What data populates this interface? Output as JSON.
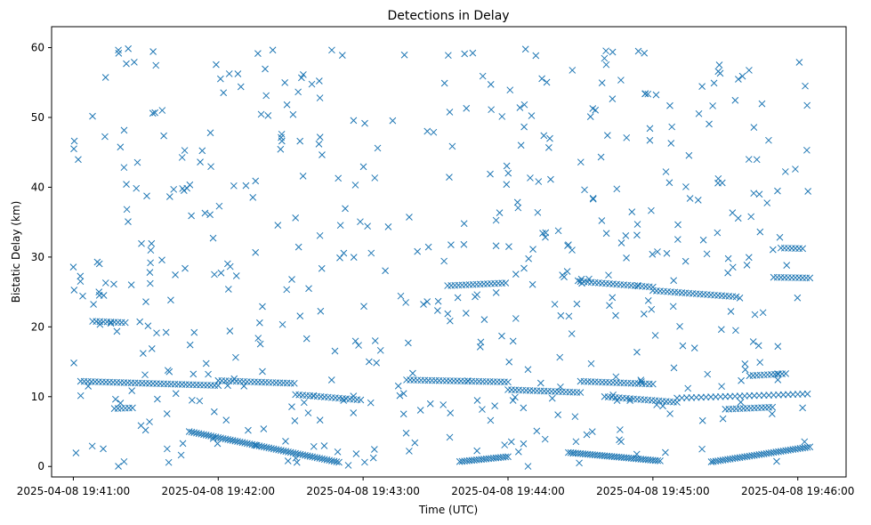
{
  "chart_data": {
    "type": "scatter",
    "title": "Detections in Delay",
    "xlabel": "Time (UTC)",
    "ylabel": "Bistatic Delay (km)",
    "x_ticks": [
      "2025-04-08 19:41:00",
      "2025-04-08 19:42:00",
      "2025-04-08 19:43:00",
      "2025-04-08 19:44:00",
      "2025-04-08 19:45:00",
      "2025-04-08 19:46:00"
    ],
    "xlim": [
      "2025-04-08 19:40:51",
      "2025-04-08 19:46:20"
    ],
    "y_ticks": [
      0,
      10,
      20,
      30,
      40,
      50,
      60
    ],
    "ylim": [
      -1.5,
      63
    ],
    "marker": "x",
    "grid": false,
    "colors": {
      "series": "#1f77b4"
    },
    "series": [
      {
        "tracks": [
          {
            "x": [
              "2025-04-08 19:41:03",
              "2025-04-08 19:42:00"
            ],
            "y": [
              12.2,
              11.6
            ],
            "step_s": 1.5
          },
          {
            "x": [
              "2025-04-08 19:42:00",
              "2025-04-08 19:42:32"
            ],
            "y": [
              12.3,
              11.9
            ],
            "step_s": 1.5
          },
          {
            "x": [
              "2025-04-08 19:42:32",
              "2025-04-08 19:43:00"
            ],
            "y": [
              10.3,
              9.5
            ],
            "step_s": 1.5
          },
          {
            "x": [
              "2025-04-08 19:43:18",
              "2025-04-08 19:44:00"
            ],
            "y": [
              12.4,
              12.1
            ],
            "step_s": 1.5
          },
          {
            "x": [
              "2025-04-08 19:44:00",
              "2025-04-08 19:44:30"
            ],
            "y": [
              11.0,
              10.6
            ],
            "step_s": 1.5
          },
          {
            "x": [
              "2025-04-08 19:44:30",
              "2025-04-08 19:45:00"
            ],
            "y": [
              12.2,
              11.8
            ],
            "step_s": 1.5
          },
          {
            "x": [
              "2025-04-08 19:44:40",
              "2025-04-08 19:45:10"
            ],
            "y": [
              10.0,
              9.2
            ],
            "step_s": 1.5
          },
          {
            "x": [
              "2025-04-08 19:45:10",
              "2025-04-08 19:46:05"
            ],
            "y": [
              9.8,
              10.4
            ],
            "step_s": 2.0
          },
          {
            "x": [
              "2025-04-08 19:41:48",
              "2025-04-08 19:42:50"
            ],
            "y": [
              5.0,
              0.6
            ],
            "step_s": 1.0
          },
          {
            "x": [
              "2025-04-08 19:43:40",
              "2025-04-08 19:44:00"
            ],
            "y": [
              0.7,
              1.4
            ],
            "step_s": 1.0
          },
          {
            "x": [
              "2025-04-08 19:44:25",
              "2025-04-08 19:45:03"
            ],
            "y": [
              2.0,
              0.8
            ],
            "step_s": 1.0
          },
          {
            "x": [
              "2025-04-08 19:45:25",
              "2025-04-08 19:46:05"
            ],
            "y": [
              0.7,
              2.8
            ],
            "step_s": 1.0
          },
          {
            "x": [
              "2025-04-08 19:43:35",
              "2025-04-08 19:44:00"
            ],
            "y": [
              25.9,
              26.3
            ],
            "step_s": 1.5
          },
          {
            "x": [
              "2025-04-08 19:44:30",
              "2025-04-08 19:45:00"
            ],
            "y": [
              26.5,
              25.7
            ],
            "step_s": 1.5
          },
          {
            "x": [
              "2025-04-08 19:45:00",
              "2025-04-08 19:45:35"
            ],
            "y": [
              25.2,
              24.3
            ],
            "step_s": 1.5
          },
          {
            "x": [
              "2025-04-08 19:45:50",
              "2025-04-08 19:46:06"
            ],
            "y": [
              27.1,
              27.0
            ],
            "step_s": 1.5
          },
          {
            "x": [
              "2025-04-08 19:45:53",
              "2025-04-08 19:46:03"
            ],
            "y": [
              31.3,
              31.2
            ],
            "step_s": 1.5
          },
          {
            "x": [
              "2025-04-08 19:41:08",
              "2025-04-08 19:41:22"
            ],
            "y": [
              20.8,
              20.6
            ],
            "step_s": 1.5
          },
          {
            "x": [
              "2025-04-08 19:41:17",
              "2025-04-08 19:41:25"
            ],
            "y": [
              8.3,
              8.4
            ],
            "step_s": 1.5
          },
          {
            "x": [
              "2025-04-08 19:45:30",
              "2025-04-08 19:45:50"
            ],
            "y": [
              8.2,
              8.5
            ],
            "step_s": 1.5
          },
          {
            "x": [
              "2025-04-08 19:45:40",
              "2025-04-08 19:45:55"
            ],
            "y": [
              13.0,
              13.3
            ],
            "step_s": 1.5
          }
        ],
        "scatter": {
          "count": 520,
          "x_range": [
            "2025-04-08 19:41:00",
            "2025-04-08 19:46:05"
          ],
          "y_range": [
            0,
            60
          ],
          "seed": 7
        }
      }
    ]
  }
}
